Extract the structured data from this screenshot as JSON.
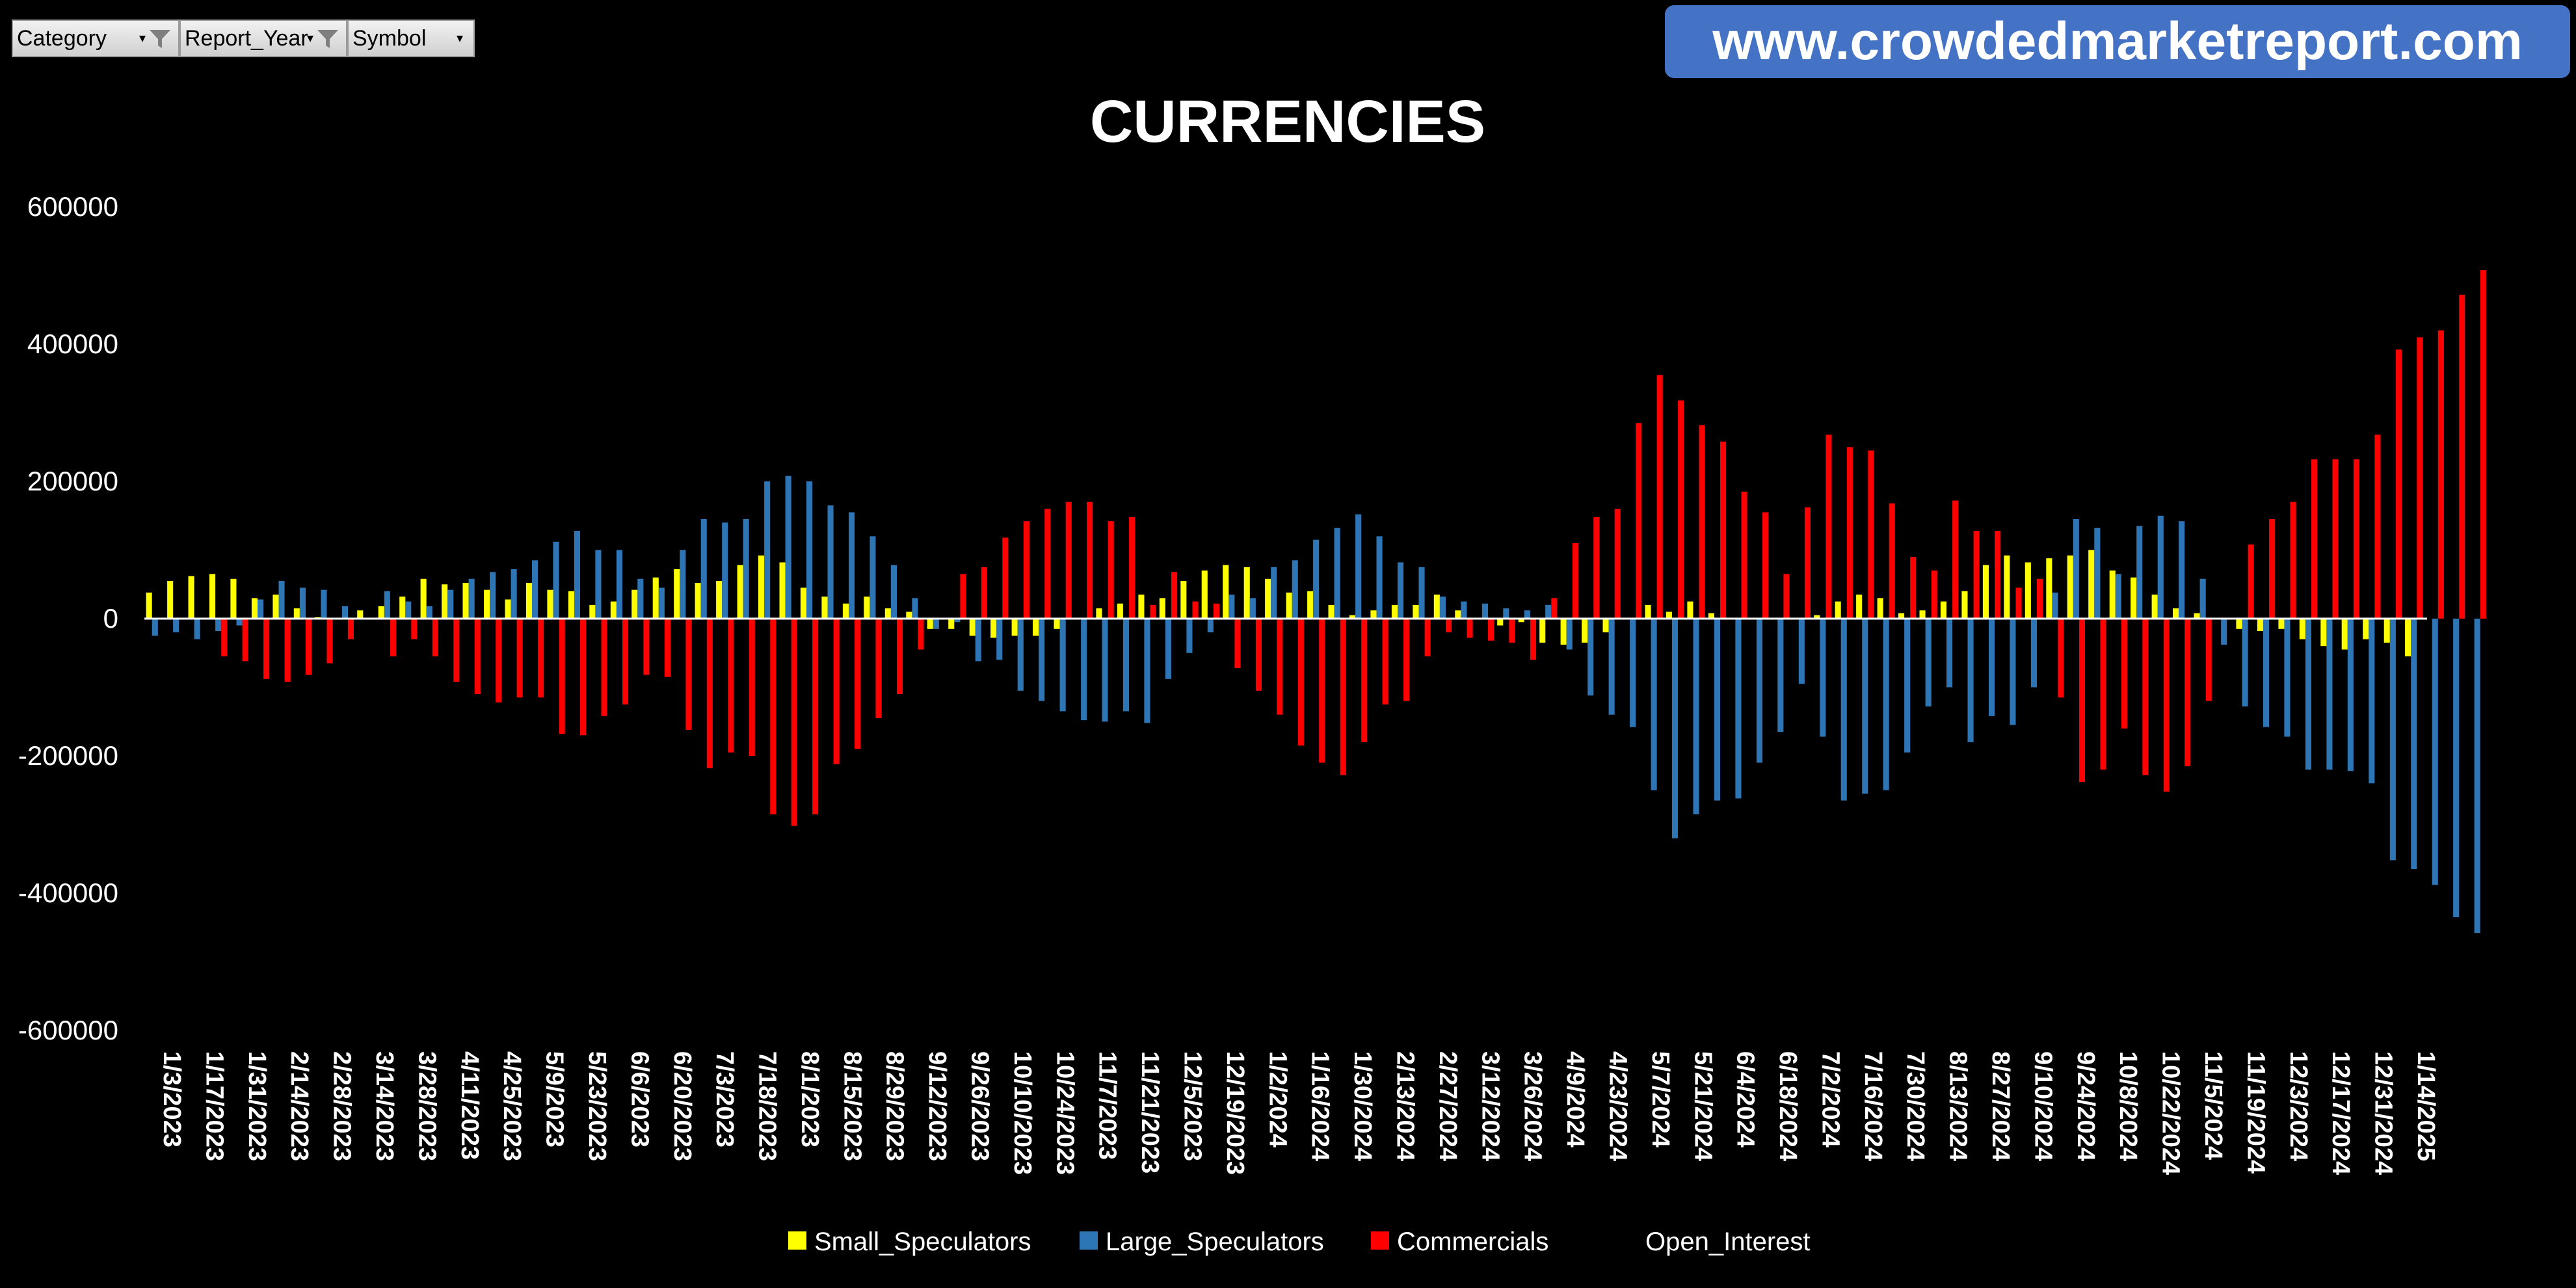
{
  "filters": [
    {
      "label": "Category",
      "has_filter_icon": true
    },
    {
      "label": "Report_Year",
      "has_filter_icon": true
    },
    {
      "label": "Symbol",
      "has_filter_icon": false
    }
  ],
  "banner": {
    "text": "www.crowdedmarketreport.com"
  },
  "colors": {
    "small": "#ffff00",
    "large": "#2e75b6",
    "commercial": "#ff0000",
    "button_accent": "#4472c4"
  },
  "chart_data": {
    "type": "bar",
    "title": "CURRENCIES",
    "xlabel": "",
    "ylabel": "",
    "ylim": [
      -600000,
      600000
    ],
    "yticks": [
      "600000",
      "400000",
      "200000",
      "0",
      "-200000",
      "-400000",
      "-600000"
    ],
    "grid": false,
    "legend_position": "bottom",
    "tick_labels": [
      "1/3/2023",
      "1/17/2023",
      "1/31/2023",
      "2/14/2023",
      "2/28/2023",
      "3/14/2023",
      "3/28/2023",
      "4/11/2023",
      "4/25/2023",
      "5/9/2023",
      "5/23/2023",
      "6/6/2023",
      "6/20/2023",
      "7/3/2023",
      "7/18/2023",
      "8/1/2023",
      "8/15/2023",
      "8/29/2023",
      "9/12/2023",
      "9/26/2023",
      "10/10/2023",
      "10/24/2023",
      "11/7/2023",
      "11/21/2023",
      "12/5/2023",
      "12/19/2023",
      "1/2/2024",
      "1/16/2024",
      "1/30/2024",
      "2/13/2024",
      "2/27/2024",
      "3/12/2024",
      "3/26/2024",
      "4/9/2024",
      "4/23/2024",
      "5/7/2024",
      "5/21/2024",
      "6/4/2024",
      "6/18/2024",
      "7/2/2024",
      "7/16/2024",
      "7/30/2024",
      "8/13/2024",
      "8/27/2024",
      "9/10/2024",
      "9/24/2024",
      "10/8/2024",
      "10/22/2024",
      "11/5/2024",
      "11/19/2024",
      "12/3/2024",
      "12/17/2024",
      "12/31/2024",
      "1/14/2025"
    ],
    "series": [
      {
        "name": "Small_Speculators",
        "values": [
          38000,
          55000,
          62000,
          65000,
          58000,
          30000,
          35000,
          15000,
          2000,
          0,
          12000,
          18000,
          32000,
          58000,
          50000,
          52000,
          42000,
          28000,
          52000,
          42000,
          40000,
          20000,
          25000,
          42000,
          60000,
          72000,
          52000,
          55000,
          78000,
          92000,
          82000,
          45000,
          32000,
          22000,
          32000,
          15000,
          10000,
          -15000,
          -15000,
          -25000,
          -28000,
          -25000,
          -25000,
          -15000,
          0,
          15000,
          22000,
          35000,
          30000,
          55000,
          70000,
          78000,
          75000,
          58000,
          38000,
          40000,
          20000,
          5000,
          12000,
          20000,
          20000,
          35000,
          12000,
          0,
          -10000,
          -5000,
          -35000,
          -38000,
          -35000,
          -20000,
          0,
          20000,
          10000,
          25000,
          8000,
          0,
          0,
          0,
          0,
          5000,
          25000,
          35000,
          30000,
          8000,
          12000,
          25000,
          40000,
          78000,
          92000,
          82000,
          88000,
          92000,
          100000,
          70000,
          60000,
          35000,
          15000,
          8000,
          0,
          -15000,
          -18000,
          -15000,
          -30000,
          -40000,
          -45000,
          -30000,
          -35000,
          -55000
        ]
      },
      {
        "name": "Large_Speculators",
        "values": [
          -25000,
          -20000,
          -30000,
          -18000,
          -10000,
          28000,
          55000,
          45000,
          42000,
          18000,
          0,
          40000,
          25000,
          18000,
          42000,
          58000,
          68000,
          72000,
          85000,
          112000,
          128000,
          100000,
          100000,
          58000,
          45000,
          100000,
          145000,
          140000,
          145000,
          200000,
          208000,
          200000,
          165000,
          155000,
          120000,
          78000,
          30000,
          -15000,
          -5000,
          -62000,
          -60000,
          -105000,
          -120000,
          -135000,
          -148000,
          -150000,
          -135000,
          -152000,
          -88000,
          -50000,
          -20000,
          35000,
          30000,
          75000,
          85000,
          115000,
          132000,
          152000,
          120000,
          82000,
          75000,
          32000,
          25000,
          22000,
          15000,
          12000,
          20000,
          -45000,
          -112000,
          -140000,
          -158000,
          -250000,
          -320000,
          -285000,
          -265000,
          -262000,
          -210000,
          -165000,
          -95000,
          -172000,
          -265000,
          -255000,
          -250000,
          -195000,
          -128000,
          -100000,
          -180000,
          -142000,
          -155000,
          -100000,
          38000,
          145000,
          132000,
          65000,
          135000,
          150000,
          142000,
          58000,
          -38000,
          -128000,
          -158000,
          -172000,
          -220000,
          -220000,
          -222000,
          -240000,
          -352000,
          -365000,
          -388000,
          -435000,
          -458000
        ]
      },
      {
        "name": "Commercials",
        "values": [
          0,
          0,
          0,
          -55000,
          -62000,
          -88000,
          -92000,
          -82000,
          -65000,
          -30000,
          0,
          -55000,
          -30000,
          -55000,
          -92000,
          -110000,
          -122000,
          -115000,
          -115000,
          -168000,
          -170000,
          -142000,
          -125000,
          -82000,
          -85000,
          -162000,
          -218000,
          -195000,
          -200000,
          -285000,
          -302000,
          -285000,
          -212000,
          -190000,
          -145000,
          -110000,
          -45000,
          0,
          65000,
          75000,
          118000,
          142000,
          160000,
          170000,
          170000,
          142000,
          148000,
          20000,
          68000,
          25000,
          22000,
          -72000,
          -105000,
          -140000,
          -185000,
          -210000,
          -228000,
          -180000,
          -125000,
          -120000,
          -55000,
          -20000,
          -28000,
          -32000,
          -35000,
          -60000,
          30000,
          110000,
          148000,
          160000,
          285000,
          355000,
          318000,
          282000,
          258000,
          185000,
          155000,
          65000,
          162000,
          268000,
          250000,
          245000,
          168000,
          90000,
          70000,
          172000,
          128000,
          128000,
          45000,
          58000,
          -115000,
          -238000,
          -220000,
          -160000,
          -228000,
          -252000,
          -215000,
          -120000,
          0,
          108000,
          145000,
          170000,
          232000,
          232000,
          232000,
          268000,
          392000,
          410000,
          420000,
          472000,
          508000
        ]
      }
    ]
  },
  "legend": [
    {
      "label": "Small_Speculators",
      "color": "#ffff00"
    },
    {
      "label": "Large_Speculators",
      "color": "#2e75b6"
    },
    {
      "label": "Commercials",
      "color": "#ff0000"
    },
    {
      "label": "Open_Interest",
      "color": ""
    }
  ]
}
